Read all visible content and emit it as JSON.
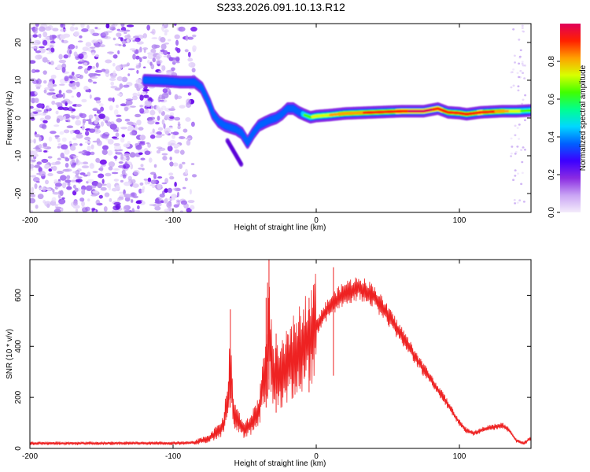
{
  "title": "S233.2026.091.10.13.R12",
  "chart_data": [
    {
      "type": "heatmap",
      "name": "spectrogram",
      "xlabel": "Height of straight line (km)",
      "ylabel": "Frequency (Hz)",
      "xlim": [
        -200,
        150
      ],
      "ylim": [
        -25,
        25
      ],
      "xticks": [
        -200,
        -100,
        0,
        100
      ],
      "yticks": [
        -20,
        -10,
        0,
        10,
        20
      ],
      "colorbar": {
        "label": "Normalized spectral amplitude",
        "range": [
          0,
          1
        ],
        "ticks": [
          "0.0",
          "0.2",
          "0.4",
          "0.6",
          "0.8"
        ],
        "tick_values": [
          0.0,
          0.2,
          0.4,
          0.6,
          0.8
        ],
        "colors": [
          "#f4ecfb",
          "#c9a4f4",
          "#8a2be2",
          "#3c00ff",
          "#0060ff",
          "#00d8ff",
          "#00ff90",
          "#40ff00",
          "#d8ff00",
          "#ffa000",
          "#ff2000",
          "#e0005a"
        ]
      },
      "ridge": {
        "x": [
          -120,
          -105,
          -95,
          -85,
          -80,
          -75,
          -72,
          -68,
          -64,
          -60,
          -56,
          -52,
          -48,
          -44,
          -40,
          -36,
          -32,
          -28,
          -24,
          -20,
          -16,
          -12,
          -8,
          -4,
          0,
          10,
          20,
          40,
          60,
          75,
          85,
          92,
          100,
          105,
          115,
          130,
          140,
          150
        ],
        "y": [
          10,
          9.8,
          9.5,
          9.5,
          8,
          4,
          1,
          -1,
          -2,
          -2.5,
          -3,
          -4,
          -6.5,
          -4,
          -2,
          -1.2,
          -0.5,
          0,
          1,
          2.5,
          2.5,
          1.5,
          0.8,
          0.2,
          0.5,
          0.8,
          1.2,
          1.5,
          1.8,
          1.8,
          2.5,
          1.5,
          1.3,
          1.0,
          1.5,
          1.8,
          1.8,
          2.0
        ],
        "amplitude": [
          0.25,
          0.3,
          0.33,
          0.35,
          0.35,
          0.3,
          0.3,
          0.28,
          0.3,
          0.28,
          0.3,
          0.25,
          0.22,
          0.25,
          0.3,
          0.35,
          0.38,
          0.4,
          0.45,
          0.5,
          0.5,
          0.5,
          0.6,
          0.65,
          0.7,
          0.75,
          0.8,
          0.85,
          0.9,
          0.95,
          0.9,
          0.88,
          0.85,
          0.85,
          0.9,
          0.8,
          0.7,
          0.6
        ]
      },
      "noise_region_x": [
        -200,
        -85
      ]
    },
    {
      "type": "line",
      "name": "snr",
      "xlabel": "Height of straight line (km)",
      "ylabel": "SNR (10 * v/v)",
      "xlim": [
        -200,
        150
      ],
      "ylim": [
        0,
        740
      ],
      "xticks": [
        -200,
        -100,
        0,
        100
      ],
      "yticks": [
        0,
        200,
        400,
        600
      ],
      "color": "#ee2222",
      "envelope": {
        "x": [
          -200,
          -150,
          -100,
          -85,
          -75,
          -70,
          -65,
          -62,
          -60,
          -58,
          -55,
          -50,
          -45,
          -40,
          -35,
          -33,
          -30,
          -25,
          -20,
          -10,
          0,
          10,
          20,
          30,
          40,
          50,
          60,
          70,
          80,
          90,
          100,
          105,
          110,
          120,
          130,
          135,
          140,
          145,
          150
        ],
        "y": [
          20,
          20,
          20,
          22,
          40,
          60,
          90,
          180,
          320,
          150,
          110,
          70,
          100,
          150,
          320,
          460,
          280,
          280,
          330,
          400,
          480,
          560,
          610,
          630,
          600,
          520,
          440,
          350,
          270,
          190,
          100,
          70,
          60,
          80,
          90,
          70,
          30,
          20,
          40
        ]
      },
      "spikes": [
        {
          "x": -60,
          "y": 545
        },
        {
          "x": -35,
          "y": 590
        },
        {
          "x": -34,
          "y": 650
        },
        {
          "x": -33,
          "y": 740
        },
        {
          "x": -28,
          "y": 450
        },
        {
          "x": -5,
          "y": 590
        },
        {
          "x": 12,
          "y": 710
        }
      ]
    }
  ]
}
